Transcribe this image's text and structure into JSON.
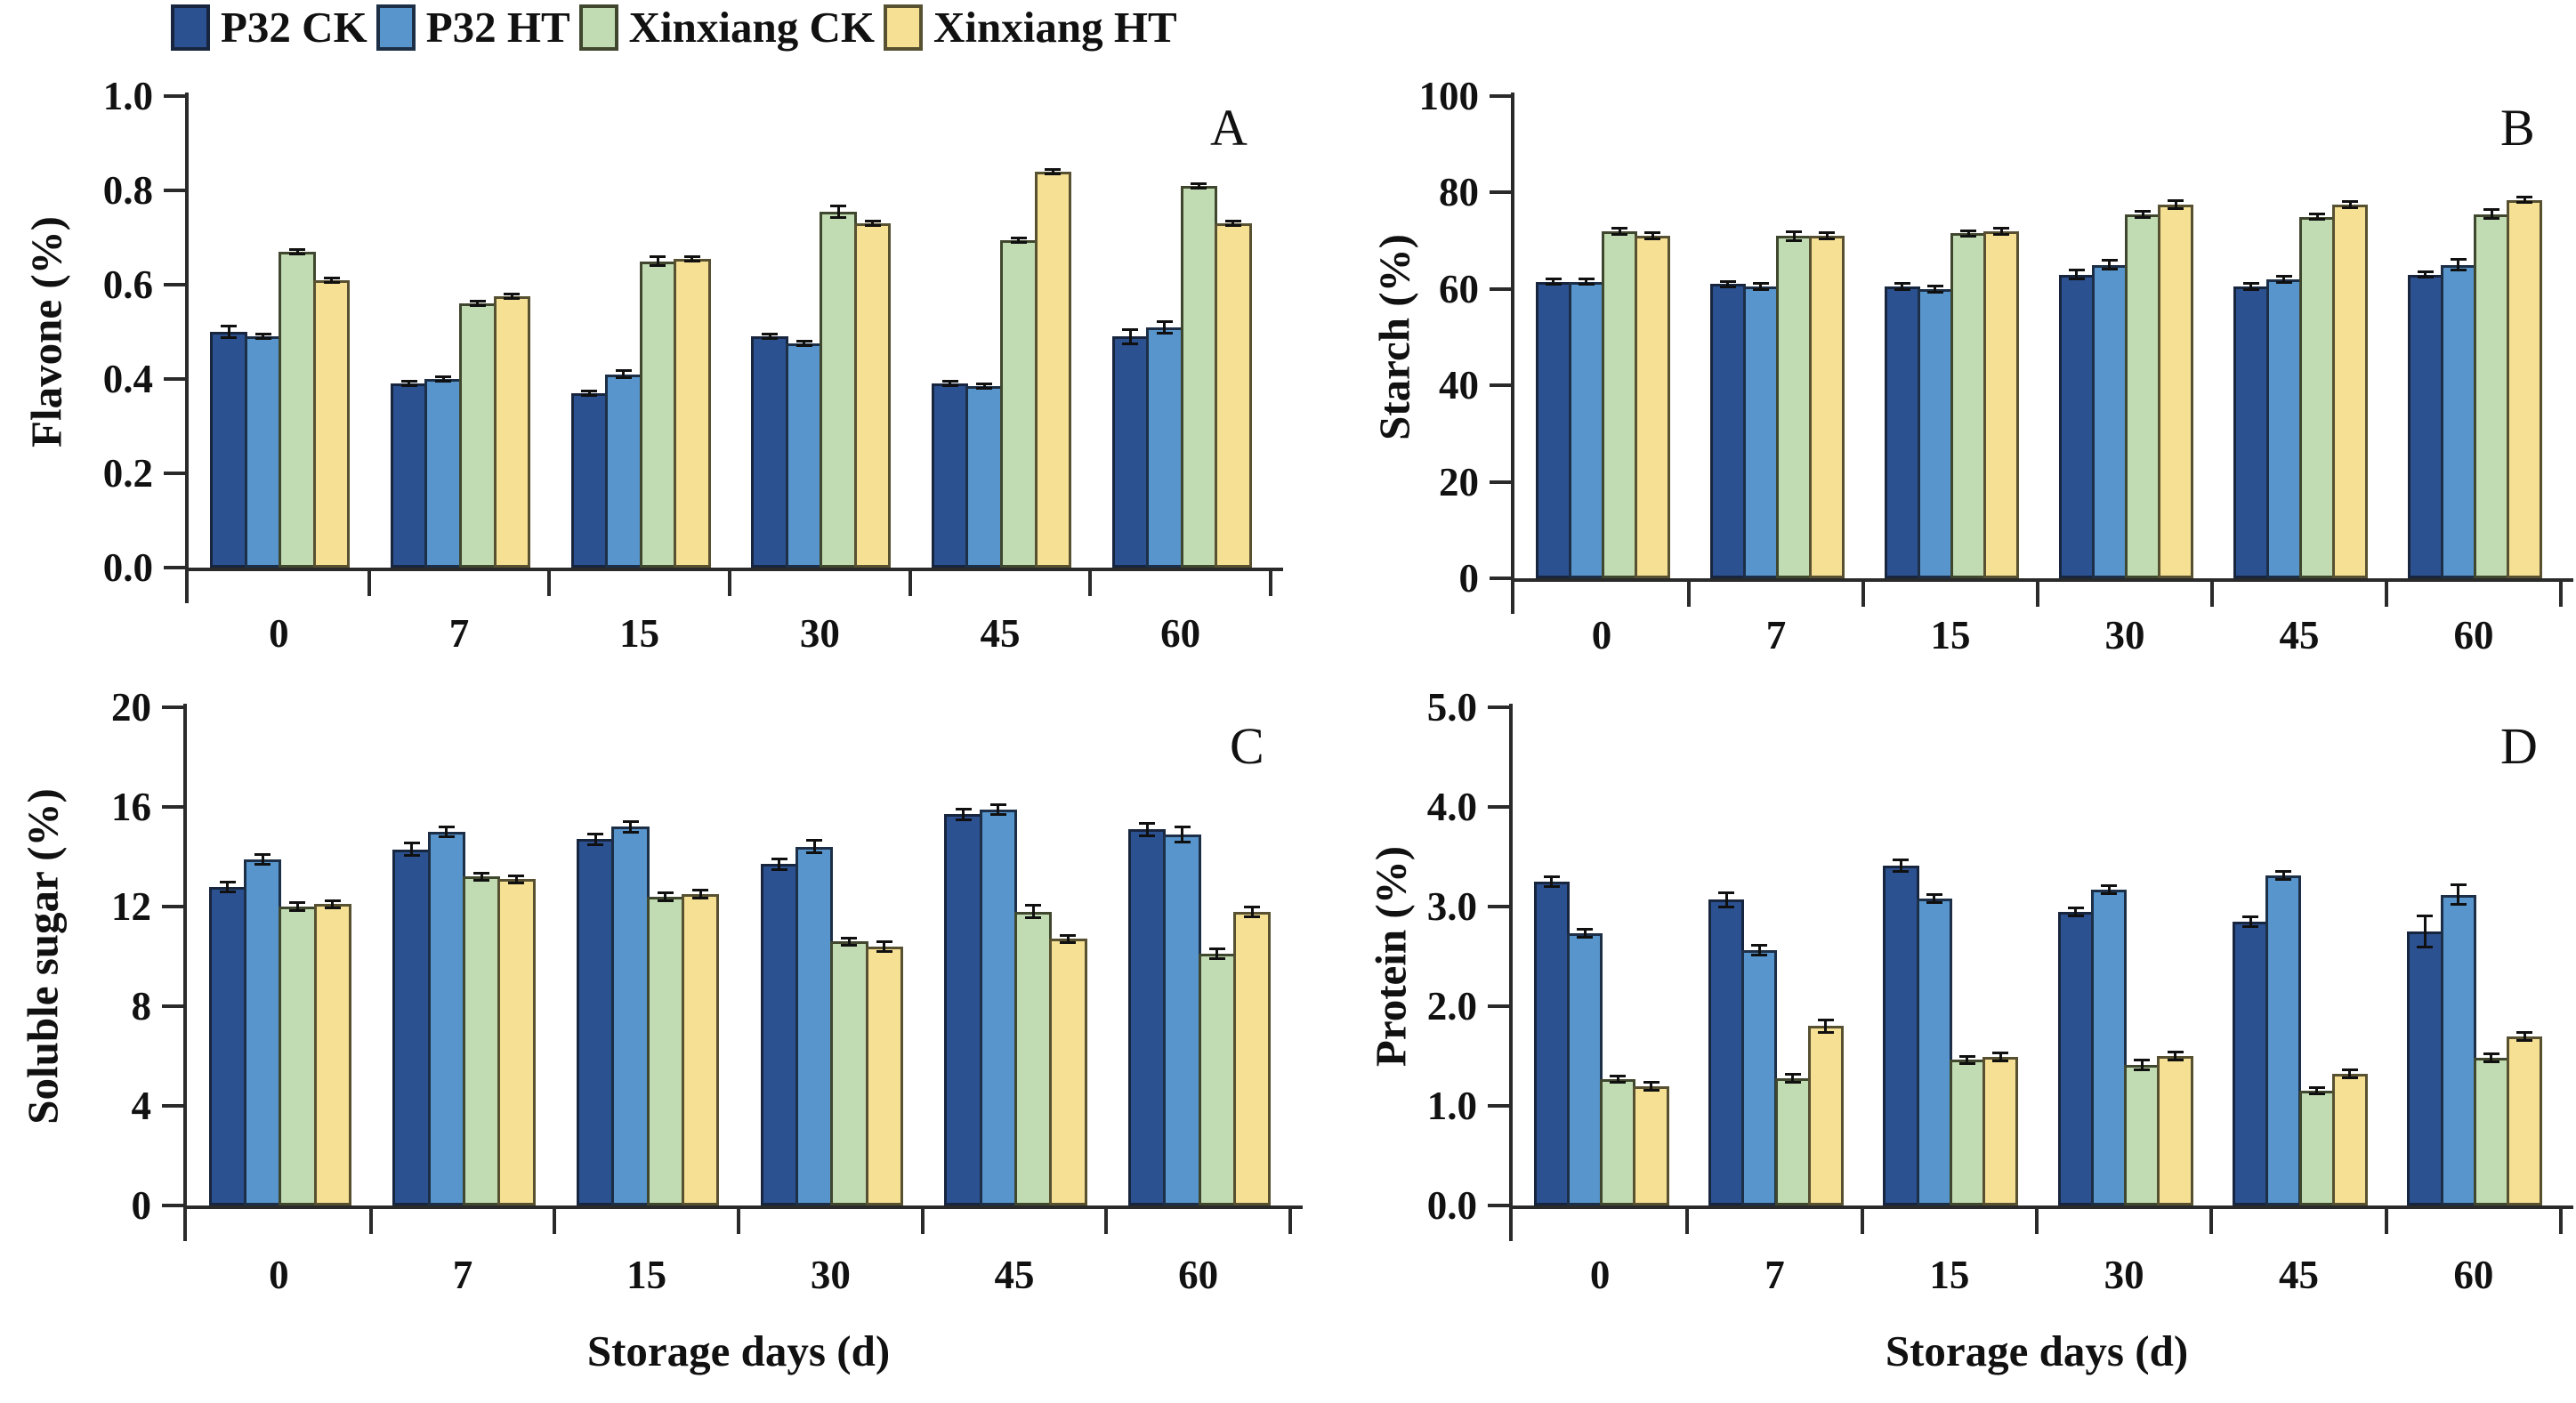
{
  "figure": {
    "legend": {
      "items": [
        {
          "label": "P32 CK",
          "color": "#2b5191",
          "border": "#18253f"
        },
        {
          "label": "P32 HT",
          "color": "#5795cc",
          "border": "#1c2f47"
        },
        {
          "label": "Xinxiang CK",
          "color": "#c1dcb2",
          "border": "#40472f"
        },
        {
          "label": "Xinxiang HT",
          "color": "#f6e094",
          "border": "#575031"
        }
      ]
    }
  },
  "chart_data": [
    {
      "type": "bar",
      "panel_label": "A",
      "ylabel": "Flavone (%)",
      "xlabel": "",
      "ylim": [
        0,
        1.0
      ],
      "yticks": [
        "0.0",
        "0.2",
        "0.4",
        "0.6",
        "0.8",
        "1.0"
      ],
      "categories": [
        "0",
        "7",
        "15",
        "30",
        "45",
        "60"
      ],
      "grid": false,
      "legend_position": "top-left-above-figure",
      "series": [
        {
          "name": "P32 CK",
          "values": [
            0.5,
            0.39,
            0.37,
            0.49,
            0.39,
            0.49
          ],
          "errors": [
            0.012,
            0.005,
            0.005,
            0.005,
            0.005,
            0.015
          ]
        },
        {
          "name": "P32 HT",
          "values": [
            0.49,
            0.4,
            0.41,
            0.475,
            0.385,
            0.51
          ],
          "errors": [
            0.005,
            0.005,
            0.008,
            0.005,
            0.005,
            0.012
          ]
        },
        {
          "name": "Xinxiang CK",
          "values": [
            0.67,
            0.56,
            0.65,
            0.755,
            0.695,
            0.81
          ],
          "errors": [
            0.005,
            0.005,
            0.01,
            0.012,
            0.005,
            0.005
          ]
        },
        {
          "name": "Xinxiang HT",
          "values": [
            0.61,
            0.575,
            0.655,
            0.73,
            0.84,
            0.73
          ],
          "errors": [
            0.005,
            0.005,
            0.005,
            0.005,
            0.005,
            0.005
          ]
        }
      ]
    },
    {
      "type": "bar",
      "panel_label": "B",
      "ylabel": "Starch (%)",
      "xlabel": "",
      "ylim": [
        0,
        100
      ],
      "yticks": [
        "0",
        "20",
        "40",
        "60",
        "80",
        "100"
      ],
      "categories": [
        "0",
        "7",
        "15",
        "30",
        "45",
        "60"
      ],
      "grid": false,
      "series": [
        {
          "name": "P32 CK",
          "values": [
            61.5,
            61,
            60.5,
            63,
            60.5,
            63
          ],
          "errors": [
            0.6,
            0.6,
            0.6,
            0.9,
            0.6,
            0.6
          ]
        },
        {
          "name": "P32 HT",
          "values": [
            61.5,
            60.5,
            60,
            65,
            62,
            65
          ],
          "errors": [
            0.6,
            0.6,
            0.6,
            0.9,
            0.6,
            1.1
          ]
        },
        {
          "name": "Xinxiang CK",
          "values": [
            72,
            71,
            71.5,
            75.5,
            75,
            75.5
          ],
          "errors": [
            0.6,
            0.9,
            0.6,
            0.6,
            0.6,
            0.9
          ]
        },
        {
          "name": "Xinxiang HT",
          "values": [
            71,
            71,
            72,
            77.5,
            77.5,
            78.5
          ],
          "errors": [
            0.6,
            0.6,
            0.6,
            0.9,
            0.6,
            0.6
          ]
        }
      ]
    },
    {
      "type": "bar",
      "panel_label": "C",
      "ylabel": "Soluble sugar (%)",
      "xlabel": "Storage days (d)",
      "ylim": [
        0,
        20
      ],
      "yticks": [
        "0",
        "4",
        "8",
        "12",
        "16",
        "20"
      ],
      "categories": [
        "0",
        "7",
        "15",
        "30",
        "45",
        "60"
      ],
      "grid": false,
      "series": [
        {
          "name": "P32 CK",
          "values": [
            12.8,
            14.3,
            14.7,
            13.7,
            15.7,
            15.1
          ],
          "errors": [
            0.2,
            0.25,
            0.2,
            0.2,
            0.2,
            0.25
          ]
        },
        {
          "name": "P32 HT",
          "values": [
            13.9,
            15.0,
            15.2,
            14.4,
            15.9,
            14.9
          ],
          "errors": [
            0.2,
            0.2,
            0.2,
            0.25,
            0.2,
            0.3
          ]
        },
        {
          "name": "Xinxiang CK",
          "values": [
            12.0,
            13.2,
            12.4,
            10.6,
            11.8,
            10.1
          ],
          "errors": [
            0.15,
            0.15,
            0.15,
            0.15,
            0.25,
            0.2
          ]
        },
        {
          "name": "Xinxiang HT",
          "values": [
            12.1,
            13.1,
            12.5,
            10.4,
            10.7,
            11.8
          ],
          "errors": [
            0.15,
            0.15,
            0.15,
            0.2,
            0.15,
            0.2
          ]
        }
      ]
    },
    {
      "type": "bar",
      "panel_label": "D",
      "ylabel": "Protein (%)",
      "xlabel": "Storage days (d)",
      "ylim": [
        0,
        5.0
      ],
      "yticks": [
        "0.0",
        "1.0",
        "2.0",
        "3.0",
        "4.0",
        "5.0"
      ],
      "categories": [
        "0",
        "7",
        "15",
        "30",
        "45",
        "60"
      ],
      "grid": false,
      "series": [
        {
          "name": "P32 CK",
          "values": [
            3.25,
            3.07,
            3.41,
            2.95,
            2.85,
            2.75
          ],
          "errors": [
            0.05,
            0.07,
            0.06,
            0.04,
            0.05,
            0.16
          ]
        },
        {
          "name": "P32 HT",
          "values": [
            2.73,
            2.56,
            3.08,
            3.17,
            3.31,
            3.12
          ],
          "errors": [
            0.04,
            0.05,
            0.04,
            0.04,
            0.04,
            0.1
          ]
        },
        {
          "name": "Xinxiang CK",
          "values": [
            1.27,
            1.28,
            1.46,
            1.41,
            1.15,
            1.48
          ],
          "errors": [
            0.03,
            0.04,
            0.04,
            0.05,
            0.03,
            0.04
          ]
        },
        {
          "name": "Xinxiang HT",
          "values": [
            1.2,
            1.8,
            1.49,
            1.5,
            1.32,
            1.7
          ],
          "errors": [
            0.04,
            0.06,
            0.04,
            0.04,
            0.04,
            0.04
          ]
        }
      ]
    }
  ]
}
